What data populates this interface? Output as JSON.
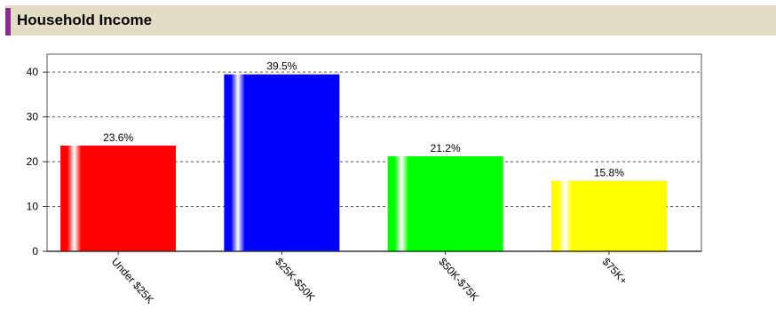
{
  "header": {
    "title": "Household Income"
  },
  "chart_data": {
    "type": "bar",
    "title": "Household Income",
    "categories": [
      "Under $25K",
      "$25K-$50K",
      "$50K-$75K",
      "$75K+"
    ],
    "values": [
      23.6,
      39.5,
      21.2,
      15.8
    ],
    "data_labels": [
      "23.6%",
      "39.5%",
      "21.2%",
      "15.8%"
    ],
    "colors": [
      "#ff0000",
      "#0000ff",
      "#00ff00",
      "#ffff00"
    ],
    "yticks": [
      0,
      10,
      20,
      30,
      40
    ],
    "ylim": [
      0,
      44
    ],
    "xlabel": "",
    "ylabel": "",
    "grid": true
  }
}
